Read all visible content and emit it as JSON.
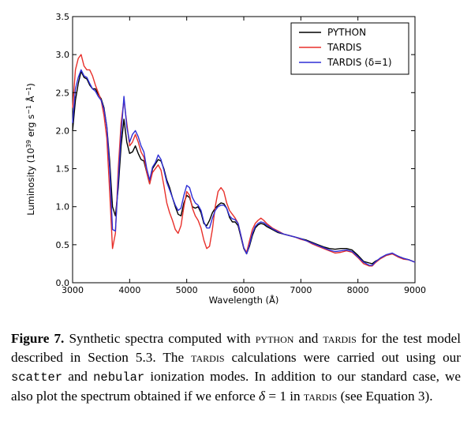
{
  "chart_data": {
    "type": "line",
    "xlabel": "Wavelength (Å)",
    "ylabel_prefix": "Luminosity (10",
    "ylabel_exp": "39",
    "ylabel_unit": " erg s",
    "ylabel_exp2": "−1",
    "ylabel_unit2": " Å",
    "ylabel_exp3": "−1",
    "ylabel_suffix": ")",
    "xlim": [
      3000,
      9000
    ],
    "ylim": [
      0.0,
      3.5
    ],
    "xticks": [
      3000,
      4000,
      5000,
      6000,
      7000,
      8000,
      9000
    ],
    "yticks": [
      "0.0",
      "0.5",
      "1.0",
      "1.5",
      "2.0",
      "2.5",
      "3.0",
      "3.5"
    ],
    "legend_position": "top-right",
    "series": [
      {
        "name": "PYTHON",
        "color": "#000000",
        "x": [
          3000,
          3050,
          3100,
          3150,
          3200,
          3250,
          3300,
          3350,
          3400,
          3450,
          3500,
          3550,
          3600,
          3650,
          3700,
          3750,
          3800,
          3850,
          3900,
          3950,
          4000,
          4050,
          4100,
          4150,
          4200,
          4250,
          4300,
          4350,
          4400,
          4450,
          4500,
          4550,
          4600,
          4650,
          4700,
          4750,
          4800,
          4850,
          4900,
          4950,
          5000,
          5050,
          5100,
          5150,
          5200,
          5250,
          5300,
          5350,
          5400,
          5450,
          5500,
          5550,
          5600,
          5650,
          5700,
          5750,
          5800,
          5850,
          5900,
          5950,
          6000,
          6050,
          6100,
          6150,
          6200,
          6250,
          6300,
          6350,
          6400,
          6500,
          6600,
          6700,
          6800,
          6900,
          7000,
          7100,
          7200,
          7300,
          7400,
          7500,
          7600,
          7700,
          7800,
          7900,
          8000,
          8100,
          8200,
          8250,
          8300,
          8400,
          8500,
          8600,
          8700,
          8800,
          8900,
          9000
        ],
        "values": [
          2.0,
          2.4,
          2.62,
          2.78,
          2.7,
          2.68,
          2.6,
          2.55,
          2.55,
          2.48,
          2.42,
          2.3,
          2.05,
          1.6,
          1.0,
          0.88,
          1.25,
          1.8,
          2.15,
          1.85,
          1.7,
          1.72,
          1.8,
          1.7,
          1.62,
          1.6,
          1.45,
          1.3,
          1.5,
          1.56,
          1.62,
          1.6,
          1.5,
          1.35,
          1.25,
          1.12,
          1.0,
          0.9,
          0.88,
          1.05,
          1.15,
          1.12,
          1.0,
          0.98,
          1.0,
          0.92,
          0.78,
          0.75,
          0.82,
          0.92,
          0.98,
          1.02,
          1.05,
          1.04,
          0.98,
          0.86,
          0.8,
          0.8,
          0.75,
          0.6,
          0.45,
          0.38,
          0.48,
          0.62,
          0.72,
          0.76,
          0.78,
          0.77,
          0.74,
          0.7,
          0.66,
          0.64,
          0.62,
          0.6,
          0.58,
          0.56,
          0.53,
          0.5,
          0.47,
          0.45,
          0.44,
          0.45,
          0.45,
          0.43,
          0.36,
          0.28,
          0.26,
          0.25,
          0.28,
          0.32,
          0.36,
          0.38,
          0.35,
          0.32,
          0.3,
          0.27
        ]
      },
      {
        "name": "TARDIS",
        "color": "#e8302b",
        "x": [
          3000,
          3050,
          3100,
          3150,
          3200,
          3250,
          3300,
          3350,
          3400,
          3450,
          3500,
          3550,
          3600,
          3650,
          3700,
          3750,
          3800,
          3850,
          3900,
          3950,
          4000,
          4050,
          4100,
          4150,
          4200,
          4250,
          4300,
          4350,
          4400,
          4450,
          4500,
          4550,
          4600,
          4650,
          4700,
          4750,
          4800,
          4850,
          4900,
          4950,
          5000,
          5050,
          5100,
          5150,
          5200,
          5250,
          5300,
          5350,
          5400,
          5450,
          5500,
          5550,
          5600,
          5650,
          5700,
          5750,
          5800,
          5850,
          5900,
          5950,
          6000,
          6050,
          6100,
          6150,
          6200,
          6250,
          6300,
          6350,
          6400,
          6500,
          6600,
          6700,
          6800,
          6900,
          7000,
          7100,
          7200,
          7300,
          7400,
          7500,
          7600,
          7700,
          7800,
          7900,
          8000,
          8100,
          8200,
          8250,
          8300,
          8400,
          8500,
          8600,
          8700,
          8800,
          8900,
          9000
        ],
        "values": [
          2.3,
          2.8,
          2.95,
          3.0,
          2.85,
          2.8,
          2.8,
          2.72,
          2.6,
          2.5,
          2.4,
          2.2,
          1.9,
          1.2,
          0.45,
          0.65,
          1.5,
          2.1,
          2.4,
          2.1,
          1.8,
          1.85,
          1.95,
          1.85,
          1.72,
          1.65,
          1.45,
          1.3,
          1.45,
          1.5,
          1.55,
          1.48,
          1.28,
          1.05,
          0.92,
          0.82,
          0.7,
          0.65,
          0.75,
          1.0,
          1.2,
          1.15,
          0.98,
          0.88,
          0.82,
          0.72,
          0.56,
          0.45,
          0.48,
          0.7,
          1.0,
          1.2,
          1.25,
          1.2,
          1.05,
          0.95,
          0.9,
          0.85,
          0.78,
          0.62,
          0.46,
          0.4,
          0.55,
          0.7,
          0.78,
          0.82,
          0.85,
          0.82,
          0.78,
          0.72,
          0.68,
          0.64,
          0.62,
          0.6,
          0.57,
          0.55,
          0.51,
          0.48,
          0.45,
          0.42,
          0.39,
          0.4,
          0.42,
          0.4,
          0.33,
          0.25,
          0.22,
          0.22,
          0.26,
          0.32,
          0.36,
          0.38,
          0.34,
          0.31,
          0.3,
          0.27
        ]
      },
      {
        "name": "TARDIS (δ=1)",
        "color": "#2f2fd6",
        "x": [
          3000,
          3050,
          3100,
          3150,
          3200,
          3250,
          3300,
          3350,
          3400,
          3450,
          3500,
          3550,
          3600,
          3650,
          3700,
          3750,
          3800,
          3850,
          3900,
          3950,
          4000,
          4050,
          4100,
          4150,
          4200,
          4250,
          4300,
          4350,
          4400,
          4450,
          4500,
          4550,
          4600,
          4650,
          4700,
          4750,
          4800,
          4850,
          4900,
          4950,
          5000,
          5050,
          5100,
          5150,
          5200,
          5250,
          5300,
          5350,
          5400,
          5450,
          5500,
          5550,
          5600,
          5650,
          5700,
          5750,
          5800,
          5850,
          5900,
          5950,
          6000,
          6050,
          6100,
          6150,
          6200,
          6250,
          6300,
          6350,
          6400,
          6500,
          6600,
          6700,
          6800,
          6900,
          7000,
          7100,
          7200,
          7300,
          7400,
          7500,
          7600,
          7700,
          7800,
          7900,
          8000,
          8100,
          8200,
          8250,
          8300,
          8400,
          8500,
          8600,
          8700,
          8800,
          8900,
          9000
        ],
        "values": [
          2.1,
          2.55,
          2.7,
          2.8,
          2.72,
          2.7,
          2.62,
          2.55,
          2.52,
          2.45,
          2.4,
          2.28,
          2.05,
          1.5,
          0.7,
          0.68,
          1.35,
          1.95,
          2.45,
          2.05,
          1.85,
          1.95,
          2.0,
          1.92,
          1.8,
          1.72,
          1.5,
          1.35,
          1.52,
          1.58,
          1.68,
          1.62,
          1.48,
          1.32,
          1.22,
          1.12,
          1.02,
          0.95,
          0.98,
          1.15,
          1.28,
          1.25,
          1.12,
          1.05,
          1.02,
          0.95,
          0.8,
          0.72,
          0.72,
          0.85,
          0.95,
          1.0,
          1.02,
          1.02,
          0.98,
          0.88,
          0.84,
          0.83,
          0.78,
          0.62,
          0.46,
          0.38,
          0.5,
          0.65,
          0.74,
          0.78,
          0.8,
          0.79,
          0.76,
          0.71,
          0.67,
          0.64,
          0.62,
          0.6,
          0.58,
          0.55,
          0.52,
          0.49,
          0.46,
          0.43,
          0.41,
          0.42,
          0.43,
          0.41,
          0.34,
          0.27,
          0.23,
          0.23,
          0.27,
          0.33,
          0.37,
          0.39,
          0.35,
          0.32,
          0.3,
          0.27
        ]
      }
    ]
  },
  "caption": {
    "label": "Figure 7.",
    "t1": " Synthetic spectra computed with ",
    "python": "python",
    "t2": " and ",
    "tardis1": "tardis",
    "t3": " for the test model described in Section 5.3. The ",
    "tardis2": "tardis",
    "t4": " calculations were carried out using our ",
    "scatter": "scatter",
    "t5": " and ",
    "nebular": "nebular",
    "t6": " ionization modes. In addition to our standard case, we also plot the spectrum obtained if we enforce ",
    "delta": "δ",
    "t7": " = 1 in ",
    "tardis3": "tardis",
    "t8": " (see Equation 3)."
  }
}
